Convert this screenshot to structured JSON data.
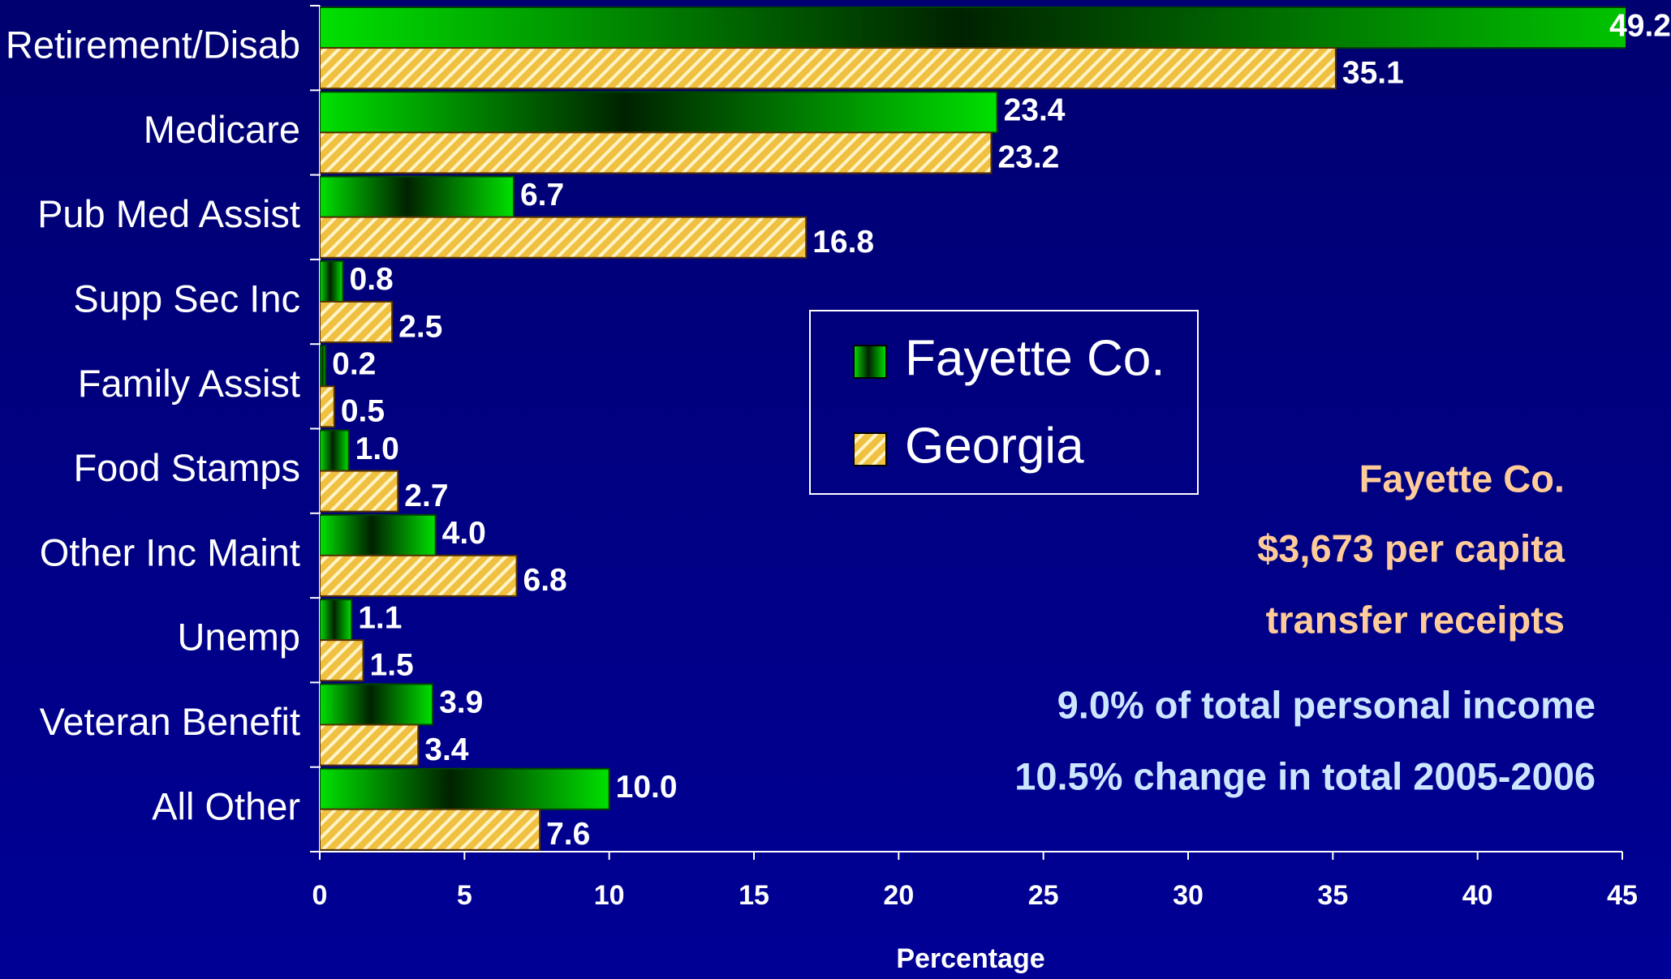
{
  "chart_data": {
    "type": "barh",
    "xlabel": "Percentage",
    "categories": [
      "Retirement/Disab",
      "Medicare",
      "Pub Med Assist",
      "Supp Sec Inc",
      "Family Assist",
      "Food Stamps",
      "Other Inc Maint",
      "Unemp",
      "Veteran Benefit",
      "All Other"
    ],
    "series": [
      {
        "name": "Fayette Co.",
        "color": "#00dd00",
        "values": [
          49.2,
          23.4,
          6.7,
          0.8,
          0.2,
          1.0,
          4.0,
          1.1,
          3.9,
          10.0
        ],
        "value_labels": [
          "49.2",
          "23.4",
          "6.7",
          "0.8",
          "0.2",
          "1.0",
          "4.0",
          "1.1",
          "3.9",
          "10.0"
        ]
      },
      {
        "name": "Georgia",
        "color": "#f0c040",
        "values": [
          35.1,
          23.2,
          16.8,
          2.5,
          0.5,
          2.7,
          6.8,
          1.5,
          3.4,
          7.6
        ],
        "value_labels": [
          "35.1",
          "23.2",
          "16.8",
          "2.5",
          "0.5",
          "2.7",
          "6.8",
          "1.5",
          "3.4",
          "7.6"
        ]
      }
    ],
    "xlim": [
      0,
      45
    ],
    "xticks": [
      0,
      5,
      10,
      15,
      20,
      25,
      30,
      35,
      40,
      45
    ],
    "annotations": [
      "Fayette Co.",
      "$3,673  per capita",
      "transfer receipts",
      "9.0% of total personal income",
      "10.5% change in total 2005-2006"
    ]
  }
}
